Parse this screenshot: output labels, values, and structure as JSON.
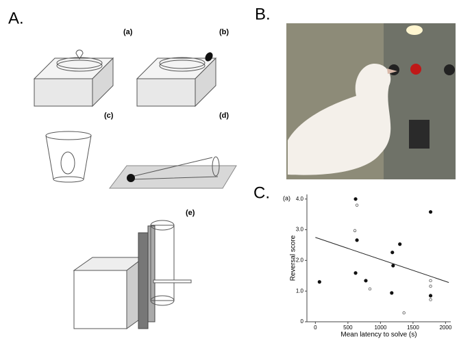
{
  "panels": {
    "a": "A.",
    "b": "B.",
    "c": "C."
  },
  "diagram_labels": [
    "(a)",
    "(b)",
    "(c)",
    "(d)",
    "(e)"
  ],
  "chart_data": {
    "type": "scatter",
    "label": "(a)",
    "x_label": "Mean latency to solve (s)",
    "y_label": "Reversal score",
    "xlim": [
      -130,
      2080
    ],
    "ylim": [
      0,
      4.15
    ],
    "xticks": [
      0,
      500,
      1000,
      1500,
      2000
    ],
    "yticks": [
      0,
      {
        "value": 1,
        "label": "1.0"
      },
      {
        "value": 2,
        "label": "2.0"
      },
      {
        "value": 3,
        "label": "3.0"
      },
      {
        "value": 4,
        "label": "4.0"
      }
    ],
    "series": [
      {
        "color": "#111111",
        "filled": true,
        "x": [
          63,
          618,
          639,
          618,
          775,
          1173,
          1183,
          1194,
          1298,
          1770,
          1770
        ],
        "values": [
          1.3,
          4.0,
          2.66,
          1.59,
          1.34,
          0.94,
          2.26,
          1.83,
          2.53,
          3.58,
          0.85
        ]
      },
      {
        "color": "#555555",
        "filled": false,
        "x": [
          639,
          607,
          838,
          1361,
          1770,
          1770,
          1770
        ],
        "values": [
          3.8,
          2.97,
          1.07,
          0.29,
          1.34,
          1.16,
          0.72
        ]
      }
    ],
    "trend_line": {
      "x": [
        0,
        2050
      ],
      "y": [
        2.75,
        1.28
      ]
    }
  }
}
